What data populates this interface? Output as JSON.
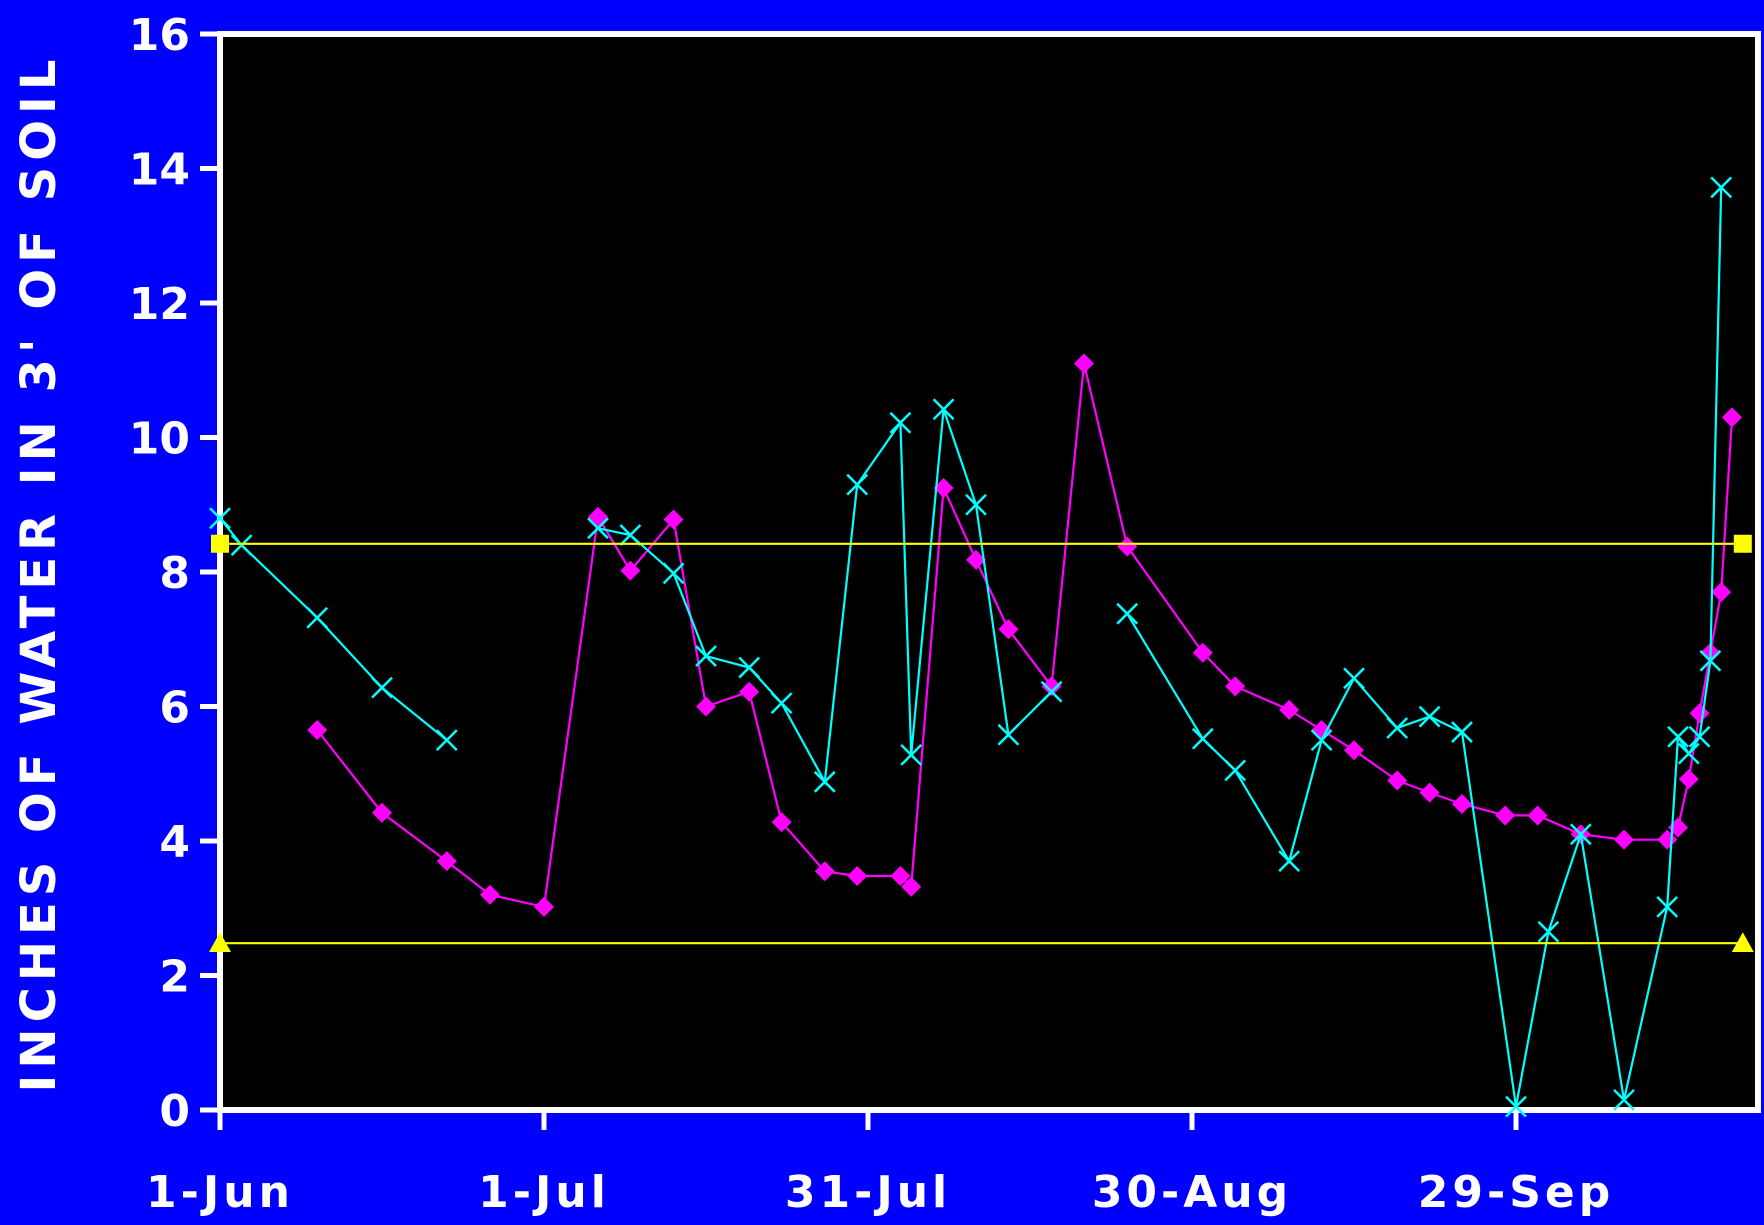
{
  "chart_data": {
    "type": "line",
    "title": "",
    "xlabel": "",
    "ylabel": "INCHES OF WATER IN 3' OF SOIL",
    "x_ticks": [
      {
        "day": 0,
        "label": "1-Jun"
      },
      {
        "day": 30,
        "label": "1-Jul"
      },
      {
        "day": 60,
        "label": "31-Jul"
      },
      {
        "day": 90,
        "label": "30-Aug"
      },
      {
        "day": 120,
        "label": "29-Sep"
      }
    ],
    "xlim": [
      0,
      142
    ],
    "ylim": [
      0,
      16
    ],
    "y_ticks": [
      0,
      2,
      4,
      6,
      8,
      10,
      12,
      14,
      16
    ],
    "grid": false,
    "legend": "none",
    "background": "#000000",
    "page_background": "#0000ff",
    "series": [
      {
        "color": "#ff00ff",
        "marker": "diamond",
        "segments": [
          [
            [
              9,
              5.65
            ],
            [
              15,
              4.42
            ],
            [
              21,
              3.7
            ],
            [
              25,
              3.2
            ],
            [
              30,
              3.02
            ],
            [
              35,
              8.82
            ],
            [
              38,
              8.02
            ],
            [
              42,
              8.78
            ],
            [
              45,
              6.0
            ],
            [
              49,
              6.22
            ],
            [
              52,
              4.28
            ],
            [
              56,
              3.55
            ],
            [
              59,
              3.48
            ],
            [
              63,
              3.48
            ],
            [
              64,
              3.32
            ],
            [
              67,
              9.25
            ],
            [
              70,
              8.18
            ],
            [
              73,
              7.15
            ],
            [
              77,
              6.3
            ],
            [
              80,
              11.1
            ],
            [
              84,
              8.38
            ],
            [
              91,
              6.8
            ],
            [
              94,
              6.3
            ],
            [
              99,
              5.95
            ],
            [
              102,
              5.65
            ],
            [
              105,
              5.35
            ],
            [
              109,
              4.9
            ],
            [
              112,
              4.72
            ],
            [
              115,
              4.55
            ],
            [
              119,
              4.38
            ],
            [
              122,
              4.38
            ],
            [
              126,
              4.1
            ],
            [
              130,
              4.02
            ],
            [
              134,
              4.02
            ],
            [
              135,
              4.2
            ],
            [
              136,
              4.92
            ],
            [
              137,
              5.9
            ],
            [
              138,
              6.8
            ],
            [
              139,
              7.7
            ],
            [
              140,
              10.3
            ]
          ]
        ]
      },
      {
        "color": "#00ffff",
        "marker": "x",
        "segments": [
          [
            [
              0,
              8.8
            ],
            [
              2,
              8.4
            ],
            [
              9,
              7.32
            ],
            [
              15,
              6.28
            ],
            [
              21,
              5.5
            ]
          ],
          [
            [
              35,
              8.65
            ],
            [
              38,
              8.55
            ],
            [
              42,
              7.98
            ],
            [
              45,
              6.75
            ],
            [
              49,
              6.58
            ],
            [
              52,
              6.05
            ],
            [
              56,
              4.88
            ],
            [
              59,
              9.3
            ],
            [
              63,
              10.22
            ],
            [
              64,
              5.28
            ],
            [
              67,
              10.42
            ],
            [
              70,
              9.0
            ],
            [
              73,
              5.58
            ],
            [
              77,
              6.22
            ]
          ],
          [
            [
              84,
              7.38
            ],
            [
              91,
              5.52
            ],
            [
              94,
              5.05
            ],
            [
              99,
              3.7
            ],
            [
              102,
              5.5
            ],
            [
              105,
              6.42
            ],
            [
              109,
              5.68
            ],
            [
              112,
              5.85
            ],
            [
              115,
              5.62
            ],
            [
              120,
              0.05
            ],
            [
              123,
              2.65
            ],
            [
              126,
              4.1
            ],
            [
              130,
              0.15
            ],
            [
              134,
              3.02
            ],
            [
              135,
              5.55
            ],
            [
              136,
              5.3
            ],
            [
              137,
              5.55
            ],
            [
              138,
              6.68
            ],
            [
              139,
              13.72
            ]
          ]
        ]
      },
      {
        "color": "#ffff00",
        "marker": "square",
        "segments": [
          [
            [
              0,
              8.42
            ],
            [
              141,
              8.42
            ]
          ]
        ]
      },
      {
        "color": "#ffff00",
        "marker": "triangle",
        "segments": [
          [
            [
              0,
              2.48
            ],
            [
              141,
              2.48
            ]
          ]
        ]
      }
    ]
  }
}
